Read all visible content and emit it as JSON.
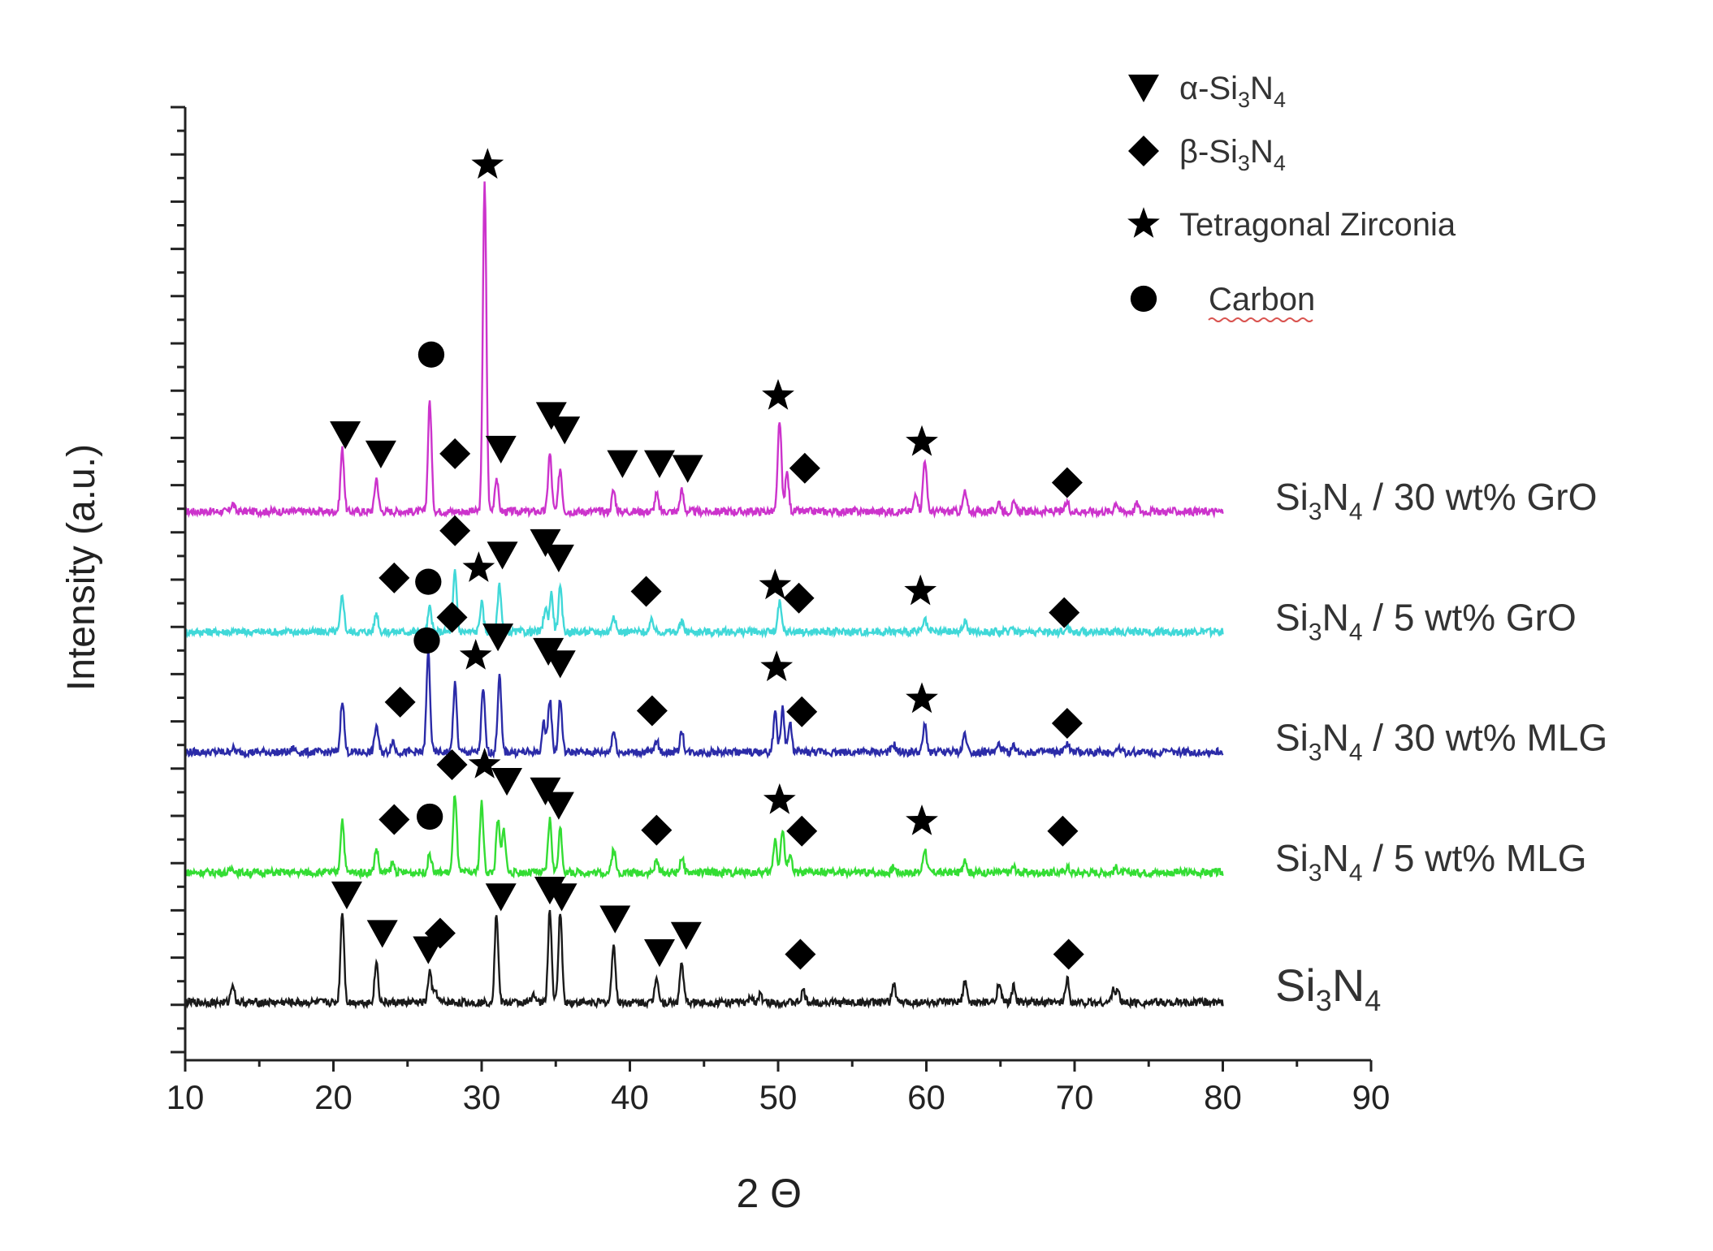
{
  "chart_data": {
    "type": "line",
    "title": "",
    "xlabel": "2 Θ",
    "ylabel": "Intensity (a.u.)",
    "xlim": [
      10,
      90
    ],
    "xticks": [
      "10",
      "20",
      "30",
      "40",
      "50",
      "60",
      "70",
      "80",
      "90"
    ],
    "y_tick_labels_shown": false,
    "legend_position": "top-right",
    "legend": [
      {
        "marker": "triangle-down",
        "label_prefix": "α-Si",
        "label_sub1": "3",
        "label_mid": "N",
        "label_sub2": "4"
      },
      {
        "marker": "diamond",
        "label_prefix": "β-Si",
        "label_sub1": "3",
        "label_mid": "N",
        "label_sub2": "4"
      },
      {
        "marker": "star",
        "label_prefix": "Tetragonal Zirconia",
        "label_sub1": "",
        "label_mid": "",
        "label_sub2": ""
      },
      {
        "marker": "circle",
        "label_prefix": "Carbon",
        "label_sub1": "",
        "label_mid": "",
        "label_sub2": ""
      }
    ],
    "series": [
      {
        "name": "Si3N4 / 30 wt% GrO",
        "label_main": "Si",
        "label_sub1": "3",
        "label_mid": "N",
        "label_sub2": "4",
        "label_tail": " / 30 wt% GrO",
        "color": "#cc33cc",
        "baseline": 4.1,
        "noise": 0.04,
        "x_start": 10,
        "x_end": 80,
        "peaks": [
          [
            13.2,
            0.08
          ],
          [
            20.6,
            0.65
          ],
          [
            22.9,
            0.35
          ],
          [
            26.5,
            1.15
          ],
          [
            30.2,
            3.4
          ],
          [
            31.0,
            0.35
          ],
          [
            34.6,
            0.6
          ],
          [
            35.3,
            0.45
          ],
          [
            38.9,
            0.22
          ],
          [
            41.8,
            0.18
          ],
          [
            43.5,
            0.22
          ],
          [
            50.1,
            0.95
          ],
          [
            50.6,
            0.4
          ],
          [
            59.3,
            0.2
          ],
          [
            59.9,
            0.55
          ],
          [
            62.6,
            0.2
          ],
          [
            64.9,
            0.1
          ],
          [
            65.9,
            0.08
          ],
          [
            69.5,
            0.1
          ],
          [
            72.8,
            0.1
          ],
          [
            74.2,
            0.08
          ]
        ],
        "markers": [
          {
            "type": "triangle-down",
            "x": 20.8,
            "h": 0.8
          },
          {
            "type": "triangle-down",
            "x": 23.2,
            "h": 0.6
          },
          {
            "type": "circle",
            "x": 26.6,
            "h": 1.63
          },
          {
            "type": "diamond",
            "x": 28.2,
            "h": 0.6
          },
          {
            "type": "star",
            "x": 30.4,
            "h": 3.6
          },
          {
            "type": "triangle-down",
            "x": 31.3,
            "h": 0.65
          },
          {
            "type": "triangle-down",
            "x": 34.7,
            "h": 1.0
          },
          {
            "type": "triangle-down",
            "x": 35.6,
            "h": 0.85
          },
          {
            "type": "triangle-down",
            "x": 39.5,
            "h": 0.5
          },
          {
            "type": "triangle-down",
            "x": 42.0,
            "h": 0.5
          },
          {
            "type": "triangle-down",
            "x": 43.9,
            "h": 0.45
          },
          {
            "type": "star",
            "x": 50.0,
            "h": 1.2
          },
          {
            "type": "diamond",
            "x": 51.8,
            "h": 0.45
          },
          {
            "type": "star",
            "x": 59.7,
            "h": 0.72
          },
          {
            "type": "diamond",
            "x": 69.5,
            "h": 0.3
          }
        ]
      },
      {
        "name": "Si3N4 / 5 wt% GrO",
        "label_main": "Si",
        "label_sub1": "3",
        "label_mid": "N",
        "label_sub2": "4",
        "label_tail": " / 5 wt% GrO",
        "color": "#40d8d8",
        "baseline": 2.85,
        "noise": 0.04,
        "x_start": 10,
        "x_end": 80,
        "peaks": [
          [
            20.6,
            0.38
          ],
          [
            22.9,
            0.2
          ],
          [
            26.5,
            0.25
          ],
          [
            28.2,
            0.62
          ],
          [
            30.0,
            0.3
          ],
          [
            31.2,
            0.5
          ],
          [
            34.3,
            0.25
          ],
          [
            34.7,
            0.4
          ],
          [
            35.3,
            0.45
          ],
          [
            38.9,
            0.18
          ],
          [
            41.5,
            0.12
          ],
          [
            43.5,
            0.1
          ],
          [
            50.1,
            0.3
          ],
          [
            59.9,
            0.12
          ],
          [
            62.6,
            0.12
          ],
          [
            65.8,
            0.06
          ],
          [
            69.5,
            0.06
          ]
        ],
        "markers": [
          {
            "type": "diamond",
            "x": 24.1,
            "h": 0.56
          },
          {
            "type": "circle",
            "x": 26.4,
            "h": 0.52
          },
          {
            "type": "diamond",
            "x": 28.2,
            "h": 1.05
          },
          {
            "type": "star",
            "x": 29.8,
            "h": 0.66
          },
          {
            "type": "triangle-down",
            "x": 31.4,
            "h": 0.8
          },
          {
            "type": "triangle-down",
            "x": 34.3,
            "h": 0.93
          },
          {
            "type": "triangle-down",
            "x": 35.2,
            "h": 0.77
          },
          {
            "type": "diamond",
            "x": 41.1,
            "h": 0.42
          },
          {
            "type": "star",
            "x": 49.8,
            "h": 0.48
          },
          {
            "type": "diamond",
            "x": 51.4,
            "h": 0.35
          },
          {
            "type": "star",
            "x": 59.6,
            "h": 0.42
          },
          {
            "type": "diamond",
            "x": 69.3,
            "h": 0.2
          }
        ]
      },
      {
        "name": "Si3N4 / 30 wt% MLG",
        "label_main": "Si",
        "label_sub1": "3",
        "label_mid": "N",
        "label_sub2": "4",
        "label_tail": " / 30 wt% MLG",
        "color": "#2b2ba8",
        "baseline": 1.6,
        "noise": 0.04,
        "x_start": 10,
        "x_end": 80,
        "peaks": [
          [
            13.2,
            0.04
          ],
          [
            17.3,
            0.04
          ],
          [
            20.6,
            0.55
          ],
          [
            22.9,
            0.28
          ],
          [
            24.0,
            0.12
          ],
          [
            26.4,
            1.05
          ],
          [
            28.2,
            0.7
          ],
          [
            30.1,
            0.65
          ],
          [
            31.2,
            0.8
          ],
          [
            34.2,
            0.3
          ],
          [
            34.6,
            0.55
          ],
          [
            35.3,
            0.55
          ],
          [
            38.9,
            0.22
          ],
          [
            41.8,
            0.12
          ],
          [
            43.5,
            0.22
          ],
          [
            49.8,
            0.4
          ],
          [
            50.3,
            0.45
          ],
          [
            50.8,
            0.3
          ],
          [
            57.8,
            0.08
          ],
          [
            59.9,
            0.28
          ],
          [
            62.6,
            0.2
          ],
          [
            64.9,
            0.08
          ],
          [
            65.9,
            0.06
          ],
          [
            69.5,
            0.1
          ],
          [
            73.0,
            0.05
          ]
        ],
        "markers": [
          {
            "type": "diamond",
            "x": 24.5,
            "h": 0.52
          },
          {
            "type": "circle",
            "x": 26.3,
            "h": 1.16
          },
          {
            "type": "diamond",
            "x": 28.0,
            "h": 1.4
          },
          {
            "type": "star",
            "x": 29.6,
            "h": 1.0
          },
          {
            "type": "triangle-down",
            "x": 31.1,
            "h": 1.2
          },
          {
            "type": "triangle-down",
            "x": 34.5,
            "h": 1.05
          },
          {
            "type": "triangle-down",
            "x": 35.3,
            "h": 0.92
          },
          {
            "type": "diamond",
            "x": 41.5,
            "h": 0.43
          },
          {
            "type": "star",
            "x": 49.9,
            "h": 0.88
          },
          {
            "type": "diamond",
            "x": 51.6,
            "h": 0.42
          },
          {
            "type": "star",
            "x": 59.7,
            "h": 0.55
          },
          {
            "type": "diamond",
            "x": 69.5,
            "h": 0.3
          }
        ]
      },
      {
        "name": "Si3N4 / 5 wt% MLG",
        "label_main": "Si",
        "label_sub1": "3",
        "label_mid": "N",
        "label_sub2": "4",
        "label_tail": " / 5 wt% MLG",
        "color": "#33dd33",
        "baseline": 0.35,
        "noise": 0.04,
        "x_start": 10,
        "x_end": 80,
        "peaks": [
          [
            13.2,
            0.05
          ],
          [
            20.6,
            0.55
          ],
          [
            22.9,
            0.25
          ],
          [
            24.0,
            0.1
          ],
          [
            26.5,
            0.2
          ],
          [
            28.2,
            0.82
          ],
          [
            30.0,
            0.72
          ],
          [
            31.1,
            0.55
          ],
          [
            31.5,
            0.45
          ],
          [
            34.6,
            0.55
          ],
          [
            35.3,
            0.45
          ],
          [
            38.9,
            0.25
          ],
          [
            41.8,
            0.12
          ],
          [
            43.5,
            0.16
          ],
          [
            49.8,
            0.35
          ],
          [
            50.3,
            0.45
          ],
          [
            50.8,
            0.2
          ],
          [
            57.8,
            0.06
          ],
          [
            59.9,
            0.25
          ],
          [
            62.6,
            0.15
          ],
          [
            65.9,
            0.06
          ],
          [
            69.5,
            0.06
          ],
          [
            72.8,
            0.05
          ]
        ],
        "markers": [
          {
            "type": "diamond",
            "x": 24.1,
            "h": 0.55
          },
          {
            "type": "circle",
            "x": 26.5,
            "h": 0.58
          },
          {
            "type": "diamond",
            "x": 28.0,
            "h": 1.12
          },
          {
            "type": "star",
            "x": 30.2,
            "h": 1.12
          },
          {
            "type": "triangle-down",
            "x": 31.7,
            "h": 0.95
          },
          {
            "type": "triangle-down",
            "x": 34.3,
            "h": 0.85
          },
          {
            "type": "triangle-down",
            "x": 35.2,
            "h": 0.7
          },
          {
            "type": "diamond",
            "x": 41.8,
            "h": 0.44
          },
          {
            "type": "star",
            "x": 50.1,
            "h": 0.75
          },
          {
            "type": "diamond",
            "x": 51.6,
            "h": 0.43
          },
          {
            "type": "star",
            "x": 59.7,
            "h": 0.53
          },
          {
            "type": "diamond",
            "x": 69.2,
            "h": 0.43
          }
        ]
      },
      {
        "name": "Si3N4",
        "label_main": "Si",
        "label_sub1": "3",
        "label_mid": "N",
        "label_sub2": "4",
        "label_tail": "",
        "color": "#1a1a1a",
        "baseline": -1.0,
        "noise": 0.04,
        "x_start": 10,
        "x_end": 80,
        "peaks": [
          [
            13.2,
            0.2
          ],
          [
            20.6,
            0.95
          ],
          [
            22.9,
            0.42
          ],
          [
            26.5,
            0.32
          ],
          [
            26.9,
            0.12
          ],
          [
            31.0,
            0.92
          ],
          [
            33.5,
            0.1
          ],
          [
            34.6,
            0.95
          ],
          [
            35.3,
            0.95
          ],
          [
            38.9,
            0.62
          ],
          [
            41.8,
            0.28
          ],
          [
            43.5,
            0.42
          ],
          [
            48.2,
            0.06
          ],
          [
            48.8,
            0.08
          ],
          [
            51.7,
            0.12
          ],
          [
            57.8,
            0.2
          ],
          [
            62.6,
            0.22
          ],
          [
            64.9,
            0.22
          ],
          [
            65.9,
            0.17
          ],
          [
            69.5,
            0.25
          ],
          [
            72.6,
            0.12
          ],
          [
            72.9,
            0.12
          ]
        ],
        "markers": [
          {
            "type": "triangle-down",
            "x": 20.9,
            "h": 1.12
          },
          {
            "type": "triangle-down",
            "x": 23.3,
            "h": 0.72
          },
          {
            "type": "triangle-down",
            "x": 26.4,
            "h": 0.55
          },
          {
            "type": "diamond",
            "x": 27.2,
            "h": 0.72
          },
          {
            "type": "triangle-down",
            "x": 31.3,
            "h": 1.1
          },
          {
            "type": "triangle-down",
            "x": 34.6,
            "h": 1.17
          },
          {
            "type": "triangle-down",
            "x": 35.4,
            "h": 1.1
          },
          {
            "type": "triangle-down",
            "x": 39.0,
            "h": 0.87
          },
          {
            "type": "triangle-down",
            "x": 42.0,
            "h": 0.52
          },
          {
            "type": "triangle-down",
            "x": 43.8,
            "h": 0.7
          },
          {
            "type": "diamond",
            "x": 51.5,
            "h": 0.5
          },
          {
            "type": "diamond",
            "x": 69.6,
            "h": 0.5
          }
        ]
      }
    ]
  }
}
